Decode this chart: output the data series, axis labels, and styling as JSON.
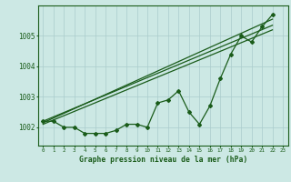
{
  "background_color": "#cce8e4",
  "plot_bg_color": "#cce8e4",
  "grid_color": "#aacccc",
  "line_color": "#1a5c1a",
  "xlabel": "Graphe pression niveau de la mer (hPa)",
  "ylim": [
    1001.4,
    1006.0
  ],
  "xlim": [
    -0.5,
    23.5
  ],
  "yticks": [
    1002,
    1003,
    1004,
    1005
  ],
  "xticks": [
    0,
    1,
    2,
    3,
    4,
    5,
    6,
    7,
    8,
    9,
    10,
    11,
    12,
    13,
    14,
    15,
    16,
    17,
    18,
    19,
    20,
    21,
    22,
    23
  ],
  "series1": [
    1002.2,
    1002.2,
    1002.0,
    1002.0,
    1001.8,
    1001.8,
    1001.8,
    1001.9,
    1002.1,
    1002.1,
    1002.0,
    1002.8,
    1002.9,
    1003.2,
    1002.5,
    1002.1,
    1002.7,
    1003.6,
    1004.4,
    1005.0,
    1004.8,
    1005.3,
    1005.7
  ],
  "trend1_x": [
    0,
    22
  ],
  "trend1_y": [
    1002.2,
    1005.35
  ],
  "trend2_x": [
    0,
    22
  ],
  "trend2_y": [
    1002.15,
    1005.55
  ],
  "trend3_x": [
    0,
    22
  ],
  "trend3_y": [
    1002.1,
    1005.2
  ]
}
